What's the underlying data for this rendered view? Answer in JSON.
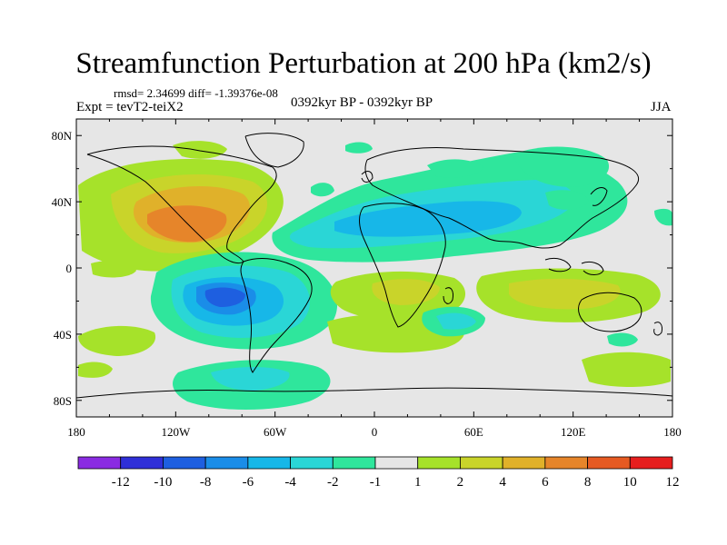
{
  "header": {
    "title": "Streamfunction Perturbation at 200 hPa (km2/s)",
    "stats": "rmsd= 2.34699 diff= -1.39376e-08",
    "experiment": "Expt = tevT2-teiX2",
    "period": "0392kyr BP - 0392kyr BP",
    "season": "JJA"
  },
  "map": {
    "projection": "cylindrical-equidistant",
    "lon_range": [
      -180,
      180
    ],
    "lat_range": [
      -90,
      90
    ],
    "x_tick_labels": [
      "180",
      "120W",
      "60W",
      "0",
      "60E",
      "120E",
      "180"
    ],
    "y_tick_labels": [
      "80N",
      "40N",
      "0",
      "40S",
      "80S"
    ],
    "background_color": "#e6e6e6",
    "coastline_color": "#000000"
  },
  "colorbar": {
    "labels": [
      "-12",
      "-10",
      "-8",
      "-6",
      "-4",
      "-2",
      "-1",
      "1",
      "2",
      "4",
      "6",
      "8",
      "10",
      "12"
    ],
    "colors": [
      "#8a2be2",
      "#2f2fd8",
      "#1e5fe0",
      "#1a8de8",
      "#17b7e8",
      "#2ad6d6",
      "#2fe69c",
      "#e6e6e6",
      "#a6e22a",
      "#c9d42a",
      "#e0b12a",
      "#e6852a",
      "#e65a22",
      "#e61e1e"
    ]
  }
}
